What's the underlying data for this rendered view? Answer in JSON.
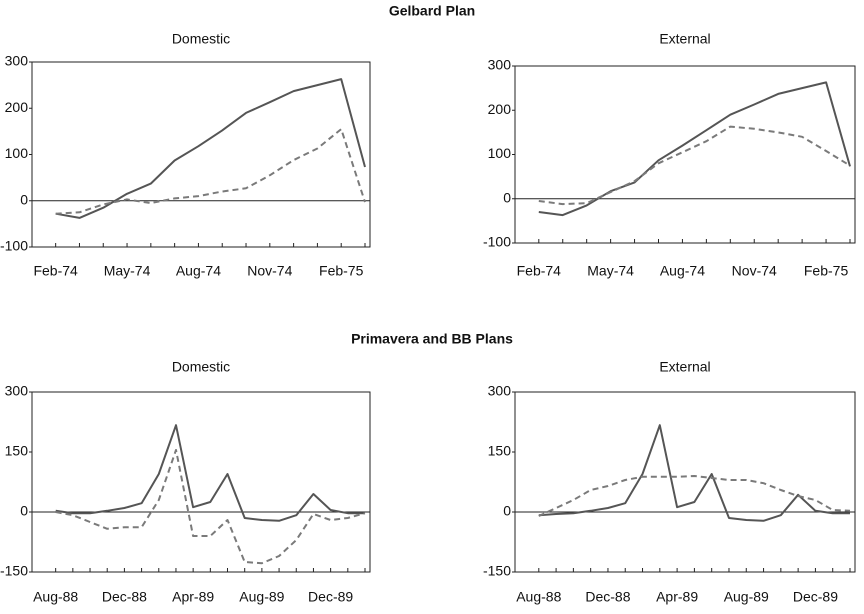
{
  "section_titles": [
    "Gelbard Plan",
    "Primavera and BB Plans"
  ],
  "chart_data": [
    {
      "type": "line",
      "subtitle": "Domestic",
      "categories": [
        "Feb-74",
        null,
        null,
        "May-74",
        null,
        null,
        "Aug-74",
        null,
        null,
        "Nov-74",
        null,
        null,
        "Feb-75",
        null
      ],
      "series": [
        {
          "color": "#555555",
          "dash": false,
          "values": [
            -28,
            -37,
            -15,
            15,
            37,
            87,
            118,
            152,
            190,
            213,
            237,
            250,
            263,
            73
          ]
        },
        {
          "color": "#7a7a7a",
          "dash": true,
          "values": [
            -28,
            -25,
            -8,
            3,
            -5,
            5,
            10,
            20,
            27,
            55,
            88,
            113,
            155,
            -3
          ]
        }
      ],
      "ylim": [
        -100,
        300
      ],
      "yticks": [
        -100,
        0,
        100,
        200,
        300
      ],
      "zero_line": true
    },
    {
      "type": "line",
      "subtitle": "External",
      "categories": [
        "Feb-74",
        null,
        null,
        "May-74",
        null,
        null,
        "Aug-74",
        null,
        null,
        "Nov-74",
        null,
        null,
        "Feb-75",
        null
      ],
      "series": [
        {
          "color": "#555555",
          "dash": false,
          "values": [
            -30,
            -37,
            -15,
            17,
            37,
            87,
            120,
            155,
            190,
            213,
            237,
            250,
            263,
            73
          ]
        },
        {
          "color": "#7a7a7a",
          "dash": true,
          "values": [
            -5,
            -12,
            -10,
            15,
            40,
            80,
            105,
            130,
            163,
            158,
            150,
            140,
            108,
            75
          ]
        }
      ],
      "ylim": [
        -100,
        300
      ],
      "yticks": [
        -100,
        0,
        100,
        200,
        300
      ],
      "zero_line": true
    },
    {
      "type": "line",
      "subtitle": "Domestic",
      "categories": [
        "Aug-88",
        null,
        null,
        null,
        "Dec-88",
        null,
        null,
        null,
        "Apr-89",
        null,
        null,
        null,
        "Aug-89",
        null,
        null,
        null,
        "Dec-89",
        null,
        null
      ],
      "series": [
        {
          "color": "#555555",
          "dash": false,
          "values": [
            3,
            -3,
            -3,
            3,
            10,
            22,
            95,
            217,
            12,
            25,
            95,
            -15,
            -20,
            -22,
            -8,
            45,
            5,
            -3,
            -3
          ]
        },
        {
          "color": "#7a7a7a",
          "dash": true,
          "values": [
            0,
            -8,
            -25,
            -42,
            -38,
            -38,
            30,
            155,
            -60,
            -60,
            -20,
            -125,
            -128,
            -110,
            -70,
            -5,
            -20,
            -15,
            -3
          ]
        }
      ],
      "ylim": [
        -150,
        300
      ],
      "yticks": [
        -150,
        0,
        150,
        300
      ],
      "zero_line": true
    },
    {
      "type": "line",
      "subtitle": "External",
      "categories": [
        "Aug-88",
        null,
        null,
        null,
        "Dec-88",
        null,
        null,
        null,
        "Apr-89",
        null,
        null,
        null,
        "Aug-89",
        null,
        null,
        null,
        "Dec-89",
        null,
        null
      ],
      "series": [
        {
          "color": "#555555",
          "dash": false,
          "values": [
            -8,
            -5,
            -3,
            3,
            10,
            22,
            95,
            217,
            12,
            25,
            95,
            -15,
            -20,
            -22,
            -8,
            43,
            3,
            -3,
            -3
          ]
        },
        {
          "color": "#7a7a7a",
          "dash": true,
          "values": [
            -10,
            10,
            30,
            55,
            65,
            80,
            88,
            88,
            88,
            90,
            85,
            80,
            80,
            72,
            55,
            40,
            30,
            5,
            3
          ]
        }
      ],
      "ylim": [
        -150,
        300
      ],
      "yticks": [
        -150,
        0,
        150,
        300
      ],
      "zero_line": true
    }
  ]
}
